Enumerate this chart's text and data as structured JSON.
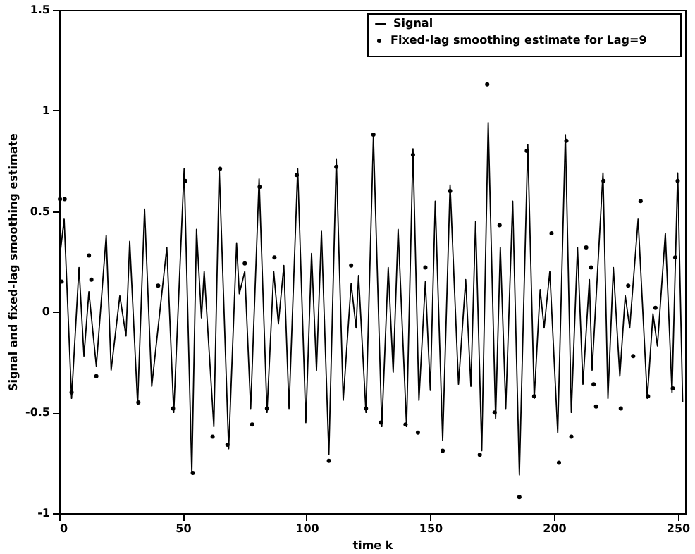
{
  "chart_data": {
    "type": "line",
    "xlabel": "time k",
    "ylabel": "Signal and fixed-lag smoothing estimate",
    "xlim": [
      0,
      253
    ],
    "ylim": [
      -1,
      1.5
    ],
    "xticks": [
      0,
      50,
      100,
      150,
      200,
      250
    ],
    "yticks": [
      -1,
      -0.5,
      0,
      0.5,
      1,
      1.5
    ],
    "grid": false,
    "legend": "top right",
    "series": [
      {
        "name": "Signal",
        "color": "#000000",
        "marker": "none",
        "line_style": "solid",
        "x": [
          0,
          2,
          5,
          8,
          10,
          12,
          15,
          19,
          21,
          24.5,
          27,
          28.5,
          31.7,
          34.5,
          37.4,
          43.5,
          46.3,
          50.5,
          53.6,
          55.5,
          57.5,
          58.6,
          62.5,
          64.7,
          68.5,
          71.7,
          72.8,
          75,
          77.4,
          80.8,
          84,
          86.7,
          88.6,
          90.8,
          92.9,
          96.4,
          99.7,
          102,
          104,
          106,
          109,
          112,
          114.8,
          118,
          120,
          121,
          124,
          127,
          130.4,
          133,
          135,
          137,
          140.4,
          143,
          145.4,
          148,
          150,
          152,
          155,
          158,
          161.4,
          164.3,
          166.4,
          168.3,
          170.8,
          173.4,
          176.4,
          178.3,
          180.5,
          183.3,
          186,
          189.4,
          192,
          194.4,
          196,
          198.3,
          201.5,
          204.6,
          207,
          209.5,
          211.7,
          214.3,
          215.4,
          219.8,
          221.8,
          224,
          226.6,
          228.8,
          230.6,
          234,
          237.7,
          240,
          241.8,
          245,
          247.7,
          250,
          252
        ],
        "values": [
          0.25,
          0.46,
          -0.43,
          0.22,
          -0.22,
          0.1,
          -0.27,
          0.38,
          -0.29,
          0.08,
          -0.12,
          0.35,
          -0.46,
          0.51,
          -0.37,
          0.32,
          -0.5,
          0.71,
          -0.8,
          0.41,
          -0.03,
          0.2,
          -0.57,
          0.71,
          -0.68,
          0.34,
          0.09,
          0.2,
          -0.48,
          0.66,
          -0.5,
          0.2,
          -0.06,
          0.23,
          -0.48,
          0.71,
          -0.55,
          0.29,
          -0.29,
          0.4,
          -0.71,
          0.76,
          -0.44,
          0.14,
          -0.08,
          0.18,
          -0.5,
          0.87,
          -0.57,
          0.22,
          -0.3,
          0.41,
          -0.57,
          0.81,
          -0.44,
          0.15,
          -0.39,
          0.55,
          -0.64,
          0.63,
          -0.36,
          0.16,
          -0.37,
          0.45,
          -0.69,
          0.94,
          -0.53,
          0.32,
          -0.48,
          0.55,
          -0.81,
          0.83,
          -0.43,
          0.11,
          -0.08,
          0.2,
          -0.6,
          0.88,
          -0.5,
          0.32,
          -0.36,
          0.16,
          -0.29,
          0.69,
          -0.43,
          0.22,
          -0.32,
          0.08,
          -0.08,
          0.46,
          -0.43,
          -0.01,
          -0.17,
          0.39,
          -0.4,
          0.69,
          -0.45
        ]
      },
      {
        "name": "Fixed-lag smoothing estimate for Lag=9",
        "type": "scatter",
        "color": "#000000",
        "marker": "circle",
        "x": [
          0.3,
          2.2,
          1,
          12,
          13,
          15,
          40,
          54,
          51,
          62,
          65,
          75,
          78,
          81,
          87,
          96,
          109,
          112,
          118,
          127,
          143,
          145,
          148,
          155,
          158,
          170,
          173,
          178,
          186,
          189,
          199,
          202,
          205,
          207,
          213,
          215,
          216,
          217,
          220,
          227,
          230,
          232,
          235,
          241,
          249,
          250,
          5,
          32,
          46,
          68,
          84,
          124,
          130,
          140,
          176,
          192,
          238,
          248
        ],
        "values": [
          0.56,
          0.56,
          0.15,
          0.28,
          0.16,
          -0.32,
          0.13,
          -0.8,
          0.65,
          -0.62,
          0.71,
          0.24,
          -0.56,
          0.62,
          0.27,
          0.68,
          -0.74,
          0.72,
          0.23,
          0.88,
          0.78,
          -0.6,
          0.22,
          -0.69,
          0.6,
          -0.71,
          1.13,
          0.43,
          -0.92,
          0.8,
          0.39,
          -0.75,
          0.85,
          -0.62,
          0.32,
          0.22,
          -0.36,
          -0.47,
          0.65,
          -0.48,
          0.13,
          -0.22,
          0.55,
          0.02,
          0.27,
          0.65,
          -0.4,
          -0.45,
          -0.48,
          -0.66,
          -0.48,
          -0.48,
          -0.55,
          -0.56,
          -0.5,
          -0.42,
          -0.42,
          -0.38
        ]
      }
    ]
  }
}
